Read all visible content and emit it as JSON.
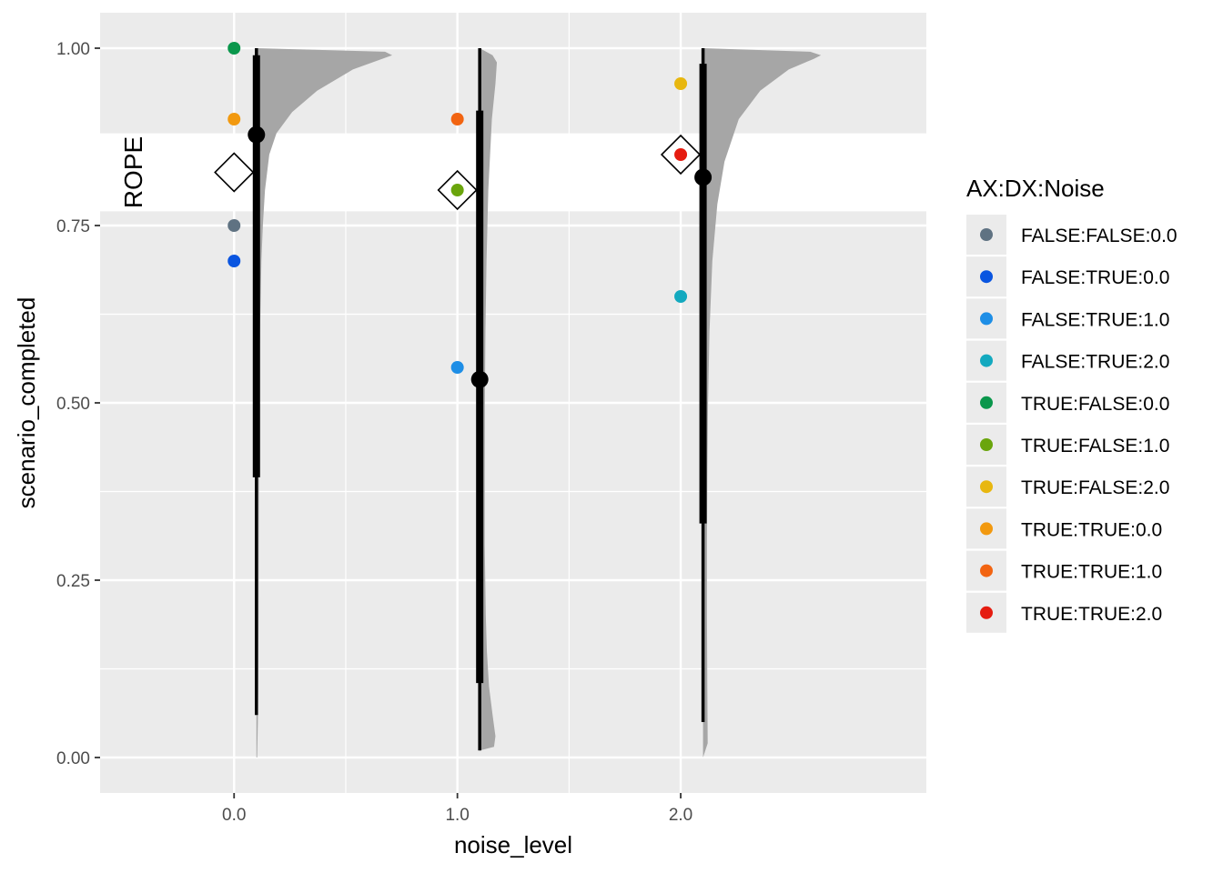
{
  "chart_data": {
    "type": "scatter",
    "title": "",
    "xlabel": "noise_level",
    "ylabel": "scenario_completed",
    "xlim": [
      -0.6,
      3.1
    ],
    "ylim": [
      -0.05,
      1.05
    ],
    "x_ticks": [
      0,
      1,
      2
    ],
    "x_tick_labels": [
      "0.0",
      "1.0",
      "2.0"
    ],
    "y_ticks": [
      0,
      0.25,
      0.5,
      0.75,
      1.0
    ],
    "y_tick_labels": [
      "0.00",
      "0.25",
      "0.50",
      "0.75",
      "1.00"
    ],
    "grid": true,
    "panel_background": "#ebebeb",
    "rope": {
      "label": "ROPE",
      "ymin": 0.77,
      "ymax": 0.88,
      "color": "#ffffff"
    },
    "legend": {
      "title": "AX:DX:Noise",
      "position": "right",
      "entries": [
        {
          "name": "FALSE:FALSE:0.0",
          "color": "#5f7282"
        },
        {
          "name": "FALSE:TRUE:0.0",
          "color": "#0a55e0"
        },
        {
          "name": "FALSE:TRUE:1.0",
          "color": "#1e8ee6"
        },
        {
          "name": "FALSE:TRUE:2.0",
          "color": "#13a9bf"
        },
        {
          "name": "TRUE:FALSE:0.0",
          "color": "#0a974c"
        },
        {
          "name": "TRUE:FALSE:1.0",
          "color": "#6aa50c"
        },
        {
          "name": "TRUE:FALSE:2.0",
          "color": "#e8b70f"
        },
        {
          "name": "TRUE:TRUE:0.0",
          "color": "#f2990f"
        },
        {
          "name": "TRUE:TRUE:1.0",
          "color": "#f26411"
        },
        {
          "name": "TRUE:TRUE:2.0",
          "color": "#e51c10"
        }
      ]
    },
    "points": [
      {
        "group": "TRUE:FALSE:0.0",
        "x": 0,
        "y": 1.0
      },
      {
        "group": "TRUE:TRUE:0.0",
        "x": 0,
        "y": 0.9
      },
      {
        "group": "FALSE:FALSE:0.0",
        "x": 0,
        "y": 0.75
      },
      {
        "group": "FALSE:TRUE:0.0",
        "x": 0,
        "y": 0.7
      },
      {
        "group": "TRUE:TRUE:1.0",
        "x": 1,
        "y": 0.9
      },
      {
        "group": "TRUE:FALSE:1.0",
        "x": 1,
        "y": 0.8
      },
      {
        "group": "FALSE:TRUE:1.0",
        "x": 1,
        "y": 0.55
      },
      {
        "group": "TRUE:FALSE:2.0",
        "x": 2,
        "y": 0.95
      },
      {
        "group": "TRUE:TRUE:2.0",
        "x": 2,
        "y": 0.85
      },
      {
        "group": "FALSE:TRUE:2.0",
        "x": 2,
        "y": 0.65
      }
    ],
    "means": [
      {
        "x": 0,
        "y": 0.825
      },
      {
        "x": 1,
        "y": 0.8
      },
      {
        "x": 2,
        "y": 0.85
      }
    ],
    "posterior": [
      {
        "x": 0,
        "median": 0.878,
        "inner": [
          0.395,
          0.99
        ],
        "outer": [
          0.06,
          1.0
        ]
      },
      {
        "x": 1,
        "median": 0.533,
        "inner": [
          0.105,
          0.912
        ],
        "outer": [
          0.01,
          1.0
        ]
      },
      {
        "x": 2,
        "median": 0.818,
        "inner": [
          0.33,
          0.978
        ],
        "outer": [
          0.05,
          1.0
        ]
      }
    ],
    "posterior_offset": 0.1,
    "density_color": "#a6a6a6",
    "densities": [
      {
        "x": 0,
        "profile": [
          [
            0.0,
            0.01
          ],
          [
            0.05,
            0.02
          ],
          [
            0.1,
            0.025
          ],
          [
            0.2,
            0.03
          ],
          [
            0.3,
            0.032
          ],
          [
            0.4,
            0.035
          ],
          [
            0.5,
            0.04
          ],
          [
            0.6,
            0.05
          ],
          [
            0.7,
            0.07
          ],
          [
            0.75,
            0.09
          ],
          [
            0.8,
            0.12
          ],
          [
            0.85,
            0.18
          ],
          [
            0.88,
            0.28
          ],
          [
            0.91,
            0.5
          ],
          [
            0.94,
            0.85
          ],
          [
            0.97,
            1.35
          ],
          [
            0.99,
            1.9
          ],
          [
            0.995,
            1.8
          ],
          [
            1.0,
            0.0
          ]
        ]
      },
      {
        "x": 1,
        "profile": [
          [
            0.01,
            0.0
          ],
          [
            0.015,
            0.2
          ],
          [
            0.03,
            0.22
          ],
          [
            0.06,
            0.18
          ],
          [
            0.1,
            0.13
          ],
          [
            0.15,
            0.1
          ],
          [
            0.2,
            0.085
          ],
          [
            0.3,
            0.07
          ],
          [
            0.4,
            0.07
          ],
          [
            0.5,
            0.072
          ],
          [
            0.6,
            0.08
          ],
          [
            0.7,
            0.095
          ],
          [
            0.8,
            0.12
          ],
          [
            0.9,
            0.17
          ],
          [
            0.95,
            0.22
          ],
          [
            0.98,
            0.24
          ],
          [
            0.99,
            0.18
          ],
          [
            1.0,
            0.0
          ]
        ]
      },
      {
        "x": 2,
        "profile": [
          [
            0.0,
            0.0
          ],
          [
            0.02,
            0.065
          ],
          [
            0.1,
            0.06
          ],
          [
            0.2,
            0.055
          ],
          [
            0.3,
            0.055
          ],
          [
            0.4,
            0.06
          ],
          [
            0.5,
            0.07
          ],
          [
            0.6,
            0.09
          ],
          [
            0.7,
            0.13
          ],
          [
            0.78,
            0.2
          ],
          [
            0.84,
            0.3
          ],
          [
            0.9,
            0.5
          ],
          [
            0.94,
            0.8
          ],
          [
            0.97,
            1.2
          ],
          [
            0.985,
            1.55
          ],
          [
            0.99,
            1.65
          ],
          [
            0.995,
            1.5
          ],
          [
            1.0,
            0.0
          ]
        ]
      }
    ]
  }
}
